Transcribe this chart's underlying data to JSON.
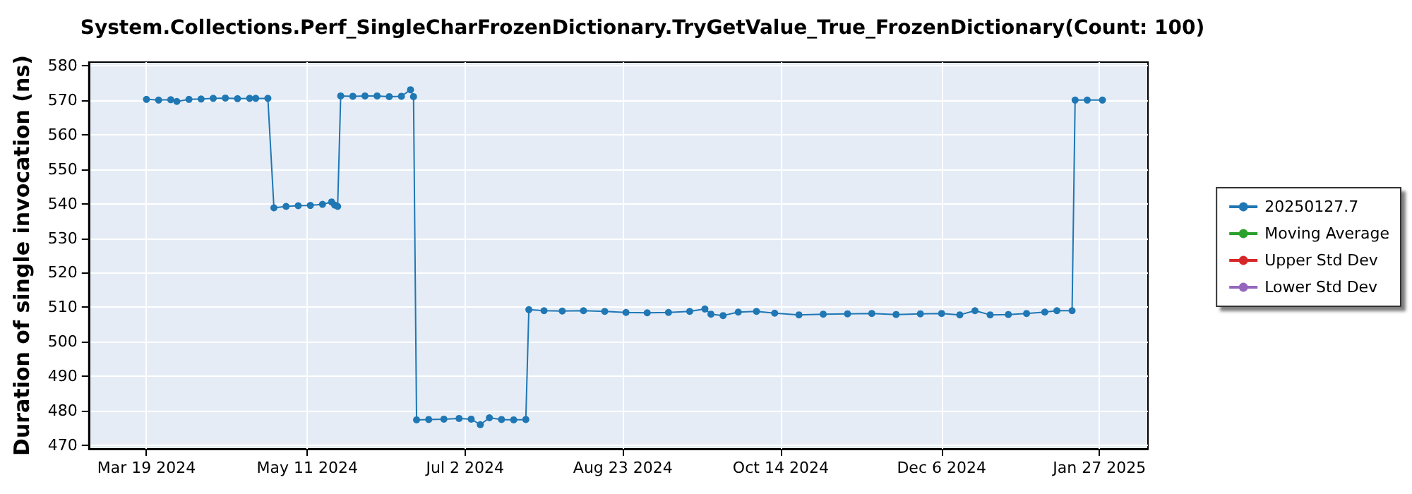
{
  "chart_data": {
    "type": "line",
    "title": "System.Collections.Perf_SingleCharFrozenDictionary.TryGetValue_True_FrozenDictionary(Count: 100)",
    "ylabel": "Duration of single invocation (ns)",
    "series": [
      {
        "name": "20250127.7",
        "color": "#1f77b4",
        "x": [
          "2024-03-19",
          "2024-03-23",
          "2024-03-27",
          "2024-03-29",
          "2024-04-02",
          "2024-04-06",
          "2024-04-10",
          "2024-04-14",
          "2024-04-18",
          "2024-04-22",
          "2024-04-24",
          "2024-04-28",
          "2024-04-30",
          "2024-05-04",
          "2024-05-08",
          "2024-05-12",
          "2024-05-16",
          "2024-05-19",
          "2024-05-20",
          "2024-05-21",
          "2024-05-22",
          "2024-05-26",
          "2024-05-30",
          "2024-06-03",
          "2024-06-07",
          "2024-06-11",
          "2024-06-14",
          "2024-06-15",
          "2024-06-16",
          "2024-06-20",
          "2024-06-25",
          "2024-06-30",
          "2024-07-04",
          "2024-07-07",
          "2024-07-10",
          "2024-07-14",
          "2024-07-18",
          "2024-07-22",
          "2024-07-23",
          "2024-07-28",
          "2024-08-03",
          "2024-08-10",
          "2024-08-17",
          "2024-08-24",
          "2024-08-31",
          "2024-09-07",
          "2024-09-14",
          "2024-09-19",
          "2024-09-21",
          "2024-09-25",
          "2024-09-30",
          "2024-10-06",
          "2024-10-12",
          "2024-10-20",
          "2024-10-28",
          "2024-11-05",
          "2024-11-13",
          "2024-11-21",
          "2024-11-29",
          "2024-12-06",
          "2024-12-12",
          "2024-12-17",
          "2024-12-22",
          "2024-12-28",
          "2025-01-03",
          "2025-01-09",
          "2025-01-13",
          "2025-01-18",
          "2025-01-19",
          "2025-01-23",
          "2025-01-28"
        ],
        "values": [
          570.2,
          570,
          570.1,
          569.6,
          570.2,
          570.3,
          570.5,
          570.6,
          570.4,
          570.5,
          570.5,
          570.5,
          538.8,
          539.2,
          539.4,
          539.5,
          539.8,
          540.5,
          539.6,
          539.2,
          571.2,
          571.1,
          571.2,
          571.2,
          571,
          571.1,
          573,
          571,
          477.4,
          477.5,
          477.6,
          477.8,
          477.6,
          476,
          478,
          477.5,
          477.4,
          477.5,
          509.3,
          509,
          508.9,
          509,
          508.8,
          508.5,
          508.4,
          508.5,
          508.8,
          509.5,
          508,
          507.6,
          508.6,
          508.8,
          508.3,
          507.8,
          508,
          508.1,
          508.2,
          507.9,
          508.1,
          508.2,
          507.8,
          509,
          507.8,
          507.9,
          508.2,
          508.6,
          509,
          509,
          570,
          570,
          570
        ]
      },
      {
        "name": "Moving Average",
        "color": "#2ca02c"
      },
      {
        "name": "Upper Std Dev",
        "color": "#d62728"
      },
      {
        "name": "Lower Std Dev",
        "color": "#9467bd"
      }
    ],
    "xlim": [
      "2024-02-29",
      "2025-02-12"
    ],
    "xticks": [
      {
        "value": "2024-03-19",
        "label": "Mar 19 2024"
      },
      {
        "value": "2024-05-11",
        "label": "May 11 2024"
      },
      {
        "value": "2024-07-02",
        "label": "Jul 2 2024"
      },
      {
        "value": "2024-08-23",
        "label": "Aug 23 2024"
      },
      {
        "value": "2024-10-14",
        "label": "Oct 14 2024"
      },
      {
        "value": "2024-12-06",
        "label": "Dec 6 2024"
      },
      {
        "value": "2025-01-27",
        "label": "Jan 27 2025"
      }
    ],
    "ylim": [
      469,
      581
    ],
    "yticks": [
      470,
      480,
      490,
      500,
      510,
      520,
      530,
      540,
      550,
      560,
      570,
      580
    ],
    "grid": true,
    "legend": "right",
    "marker": "circle",
    "line_style": "solid"
  }
}
